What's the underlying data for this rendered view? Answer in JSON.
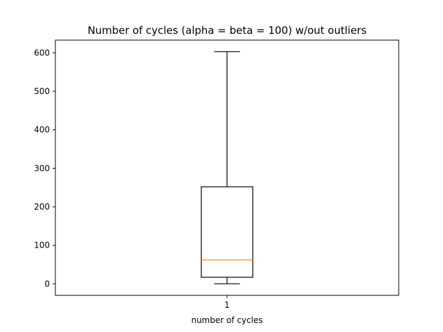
{
  "chart_data": {
    "type": "box",
    "title": "Number of cycles (alpha = beta = 100) w/out outliers",
    "xlabel": "number of cycles",
    "ylabel": "",
    "categories": [
      "1"
    ],
    "boxes": [
      {
        "name": "1",
        "whisker_low": 0,
        "q1": 17,
        "median": 62,
        "q3": 252,
        "whisker_high": 603
      }
    ],
    "ylim": [
      -30,
      633
    ],
    "yticks": [
      0,
      100,
      200,
      300,
      400,
      500,
      600
    ],
    "grid": false,
    "colors": {
      "box": "#000000",
      "median": "#ff7f0e",
      "whisker": "#000000",
      "axes": "#000000",
      "background": "#ffffff"
    }
  }
}
